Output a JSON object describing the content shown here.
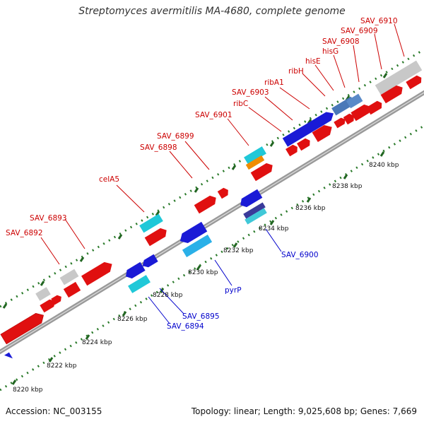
{
  "title": "Streptomyces avermitilis MA-4680, complete genome",
  "footer": {
    "accession": "Accession: NC_003155",
    "stats": "Topology: linear; Length: 9,025,608 bp; Genes: 7,669"
  },
  "colors": {
    "backbone": "#8c8c8c",
    "tick_major": "#226622",
    "label_top": "#cc0000",
    "label_bottom": "#0000cc",
    "gene_red": "#e01010",
    "gene_gray": "#c8c8c8",
    "gene_blue": "#1a1ad6",
    "gene_cyan": "#20c8d8",
    "gene_orange": "#f08c00"
  },
  "scale": {
    "unit": "kbp",
    "tick_labels": [
      {
        "kbp": 8220,
        "label": "8220 kbp"
      },
      {
        "kbp": 8222,
        "label": "8222 kbp"
      },
      {
        "kbp": 8224,
        "label": "8224 kbp"
      },
      {
        "kbp": 8226,
        "label": "8226 kbp"
      },
      {
        "kbp": 8228,
        "label": "8228 kbp"
      },
      {
        "kbp": 8230,
        "label": "8230 kbp"
      },
      {
        "kbp": 8232,
        "label": "8232 kbp"
      },
      {
        "kbp": 8234,
        "label": "8234 kbp"
      },
      {
        "kbp": 8236,
        "label": "8236 kbp"
      },
      {
        "kbp": 8238,
        "label": "8238 kbp"
      },
      {
        "kbp": 8240,
        "label": "8240 kbp"
      }
    ]
  },
  "labels_top": [
    {
      "name": "SAV_6892"
    },
    {
      "name": "SAV_6893"
    },
    {
      "name": "celA5"
    },
    {
      "name": "SAV_6898"
    },
    {
      "name": "SAV_6899"
    },
    {
      "name": "SAV_6901"
    },
    {
      "name": "ribC"
    },
    {
      "name": "SAV_6903"
    },
    {
      "name": "ribA1"
    },
    {
      "name": "ribH"
    },
    {
      "name": "hisE"
    },
    {
      "name": "hisG"
    },
    {
      "name": "SAV_6908"
    },
    {
      "name": "SAV_6909"
    },
    {
      "name": "SAV_6910"
    }
  ],
  "labels_bottom": [
    {
      "name": "SAV_6894"
    },
    {
      "name": "SAV_6895"
    },
    {
      "name": "pyrP"
    },
    {
      "name": "SAV_6900"
    }
  ]
}
